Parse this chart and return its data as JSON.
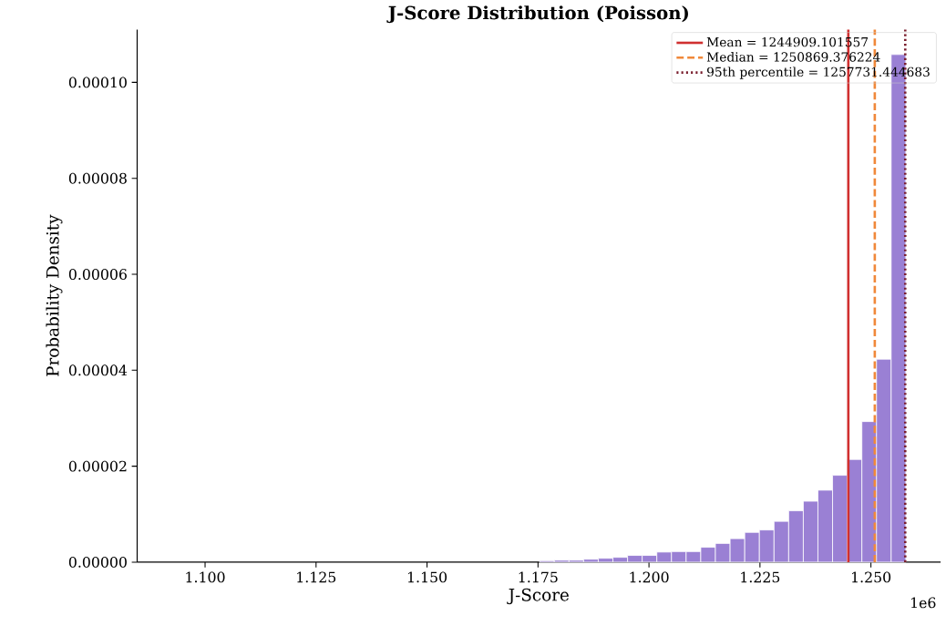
{
  "chart_data": {
    "type": "histogram",
    "title": "J-Score Distribution (Poisson)",
    "xlabel": "J-Score",
    "ylabel": "Probability Density",
    "color": "#9a80d4",
    "bins": [
      1.0929,
      1.0962,
      1.0995,
      1.1028,
      1.1061,
      1.1094,
      1.1127,
      1.11599,
      1.11929,
      1.12259,
      1.12589,
      1.12919,
      1.13249,
      1.13579,
      1.13909,
      1.14239,
      1.14569,
      1.14899,
      1.15229,
      1.15558,
      1.15888,
      1.16218,
      1.16548,
      1.16878,
      1.17208,
      1.17538,
      1.17868,
      1.18198,
      1.18528,
      1.18858,
      1.19188,
      1.19518,
      1.19847,
      1.20177,
      1.20507,
      1.20837,
      1.21167,
      1.21497,
      1.21827,
      1.22157,
      1.22487,
      1.22817,
      1.23147,
      1.23477,
      1.23806,
      1.24136,
      1.24466,
      1.24796,
      1.25126,
      1.25456,
      1.25786
    ],
    "values": [
      0,
      0,
      0,
      0,
      0,
      0,
      0,
      0,
      0,
      0,
      0,
      0,
      0,
      0,
      0,
      0,
      0,
      0,
      0,
      0,
      0,
      0,
      0,
      0,
      0,
      3e-07,
      4e-07,
      4e-07,
      6e-07,
      8e-07,
      1e-06,
      1.4e-06,
      1.4e-06,
      2.1e-06,
      2.2e-06,
      2.2e-06,
      3.1e-06,
      3.9e-06,
      4.9e-06,
      6.2e-06,
      6.7e-06,
      8.5e-06,
      1.07e-05,
      1.27e-05,
      1.5e-05,
      1.81e-05,
      2.14e-05,
      2.93e-05,
      4.23e-05,
      0.0001058
    ],
    "xlim": [
      1.0847,
      1.2657
    ],
    "ylim": [
      0,
      0.000111
    ],
    "xticks": [
      {
        "value": 1.1,
        "label": "1.100"
      },
      {
        "value": 1.125,
        "label": "1.125"
      },
      {
        "value": 1.15,
        "label": "1.150"
      },
      {
        "value": 1.175,
        "label": "1.175"
      },
      {
        "value": 1.2,
        "label": "1.200"
      },
      {
        "value": 1.225,
        "label": "1.225"
      },
      {
        "value": 1.25,
        "label": "1.250"
      }
    ],
    "yticks": [
      {
        "value": 0,
        "label": "0.00000"
      },
      {
        "value": 2e-05,
        "label": "0.00002"
      },
      {
        "value": 4e-05,
        "label": "0.00004"
      },
      {
        "value": 6e-05,
        "label": "0.00006"
      },
      {
        "value": 8e-05,
        "label": "0.00008"
      },
      {
        "value": 0.0001,
        "label": "0.00010"
      }
    ],
    "ref_lines": [
      {
        "axis": "x",
        "value": 1.244909101557,
        "label": "Mean = 1244909.101557",
        "color": "#d03030",
        "line_style": "solid"
      },
      {
        "axis": "x",
        "value": 1.250869376224,
        "label": "Median = 1250869.376224",
        "color": "#f0883a",
        "line_style": "dashed"
      },
      {
        "axis": "x",
        "value": 1.257731444683,
        "label": "95th percentile = 1257731.444683",
        "color": "#7a1f2e",
        "line_style": "dotted"
      }
    ],
    "legend": "top right",
    "annotations": [
      "1e6"
    ]
  }
}
